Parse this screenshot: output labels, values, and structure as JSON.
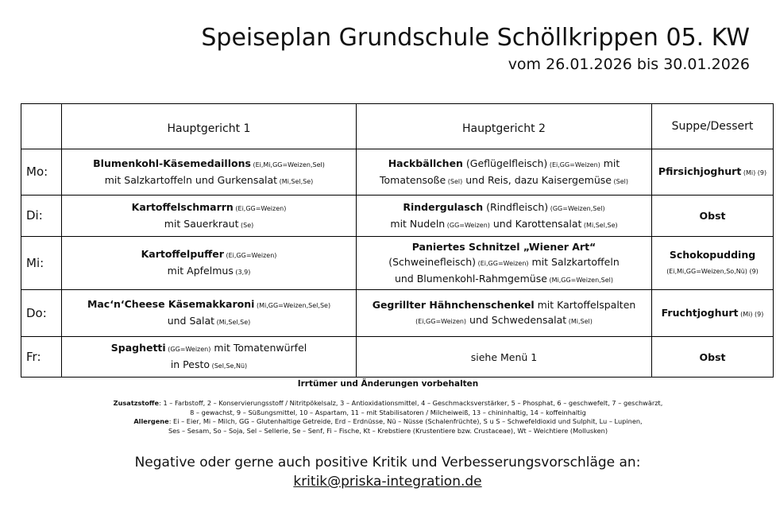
{
  "title": "Speiseplan Grundschule Schöllkrippen 05. KW",
  "subtitle": "vom 26.01.2026 bis 30.01.2026",
  "headers": [
    "",
    "Hauptgericht 1",
    "Hauptgericht 2",
    "Suppe/Dessert"
  ],
  "rows": [
    {
      "day": "Mo:",
      "cells": [
        [
          [
            {
              "t": "Blumenkohl-Käsemedaillons",
              "b": 1
            },
            {
              "t": " (Ei,Mi,GG=Weizen,Sel)",
              "s": 1
            }
          ],
          [
            {
              "t": "mit Salzkartoffeln und Gurkensalat"
            },
            {
              "t": " (Mi,Sel,Se)",
              "s": 1
            }
          ]
        ],
        [
          [
            {
              "t": "Hackbällchen",
              "b": 1
            },
            {
              "t": " (Geflügelfleisch)"
            },
            {
              "t": " (Ei,GG=Weizen)",
              "s": 1
            },
            {
              "t": " mit"
            }
          ],
          [
            {
              "t": "Tomatensoße"
            },
            {
              "t": " (Sel)",
              "s": 1
            },
            {
              "t": " und Reis, dazu Kaisergemüse"
            },
            {
              "t": " (Sel)",
              "s": 1
            }
          ]
        ],
        [
          [
            {
              "t": "Pfirsichjoghurt",
              "b": 1
            },
            {
              "t": " (Mi) (9)",
              "s": 1
            }
          ]
        ]
      ]
    },
    {
      "day": "Di:",
      "cells": [
        [
          [
            {
              "t": "Kartoffelschmarrn",
              "b": 1
            },
            {
              "t": " (Ei,GG=Weizen)",
              "s": 1
            }
          ],
          [
            {
              "t": "mit Sauerkraut"
            },
            {
              "t": " (Se)",
              "s": 1
            }
          ]
        ],
        [
          [
            {
              "t": "Rindergulasch",
              "b": 1
            },
            {
              "t": " (Rindfleisch)"
            },
            {
              "t": " (GG=Weizen,Sel)",
              "s": 1
            }
          ],
          [
            {
              "t": "mit Nudeln"
            },
            {
              "t": " (GG=Weizen)",
              "s": 1
            },
            {
              "t": " und Karottensalat"
            },
            {
              "t": " (Mi,Sel,Se)",
              "s": 1
            }
          ]
        ],
        [
          [
            {
              "t": "Obst",
              "b": 1
            }
          ]
        ]
      ]
    },
    {
      "day": "Mi:",
      "cells": [
        [
          [
            {
              "t": "Kartoffelpuffer",
              "b": 1
            },
            {
              "t": " (Ei,GG=Weizen)",
              "s": 1
            }
          ],
          [
            {
              "t": "mit Apfelmus"
            },
            {
              "t": " (3,9)",
              "s": 1
            }
          ]
        ],
        [
          [
            {
              "t": "Paniertes Schnitzel „Wiener Art“",
              "b": 1
            }
          ],
          [
            {
              "t": "(Schweinefleisch)"
            },
            {
              "t": " (Ei,GG=Weizen)",
              "s": 1
            },
            {
              "t": " mit Salzkartoffeln"
            }
          ],
          [
            {
              "t": "und Blumenkohl-Rahmgemüse"
            },
            {
              "t": " (Mi,GG=Weizen,Sel)",
              "s": 1
            }
          ]
        ],
        [
          [
            {
              "t": "Schokopudding",
              "b": 1
            }
          ],
          [
            {
              "t": "(Ei,Mi,GG=Weizen,So,Nü) (9)",
              "s": 1
            }
          ]
        ]
      ]
    },
    {
      "day": "Do:",
      "cells": [
        [
          [
            {
              "t": "Mac‘n‘Cheese Käsemakkaroni",
              "b": 1
            },
            {
              "t": " (Mi,GG=Weizen,Sel,Se)",
              "s": 1
            }
          ],
          [
            {
              "t": "und Salat"
            },
            {
              "t": " (Mi,Sel,Se)",
              "s": 1
            }
          ]
        ],
        [
          [
            {
              "t": "Gegrillter Hähnchenschenkel",
              "b": 1
            },
            {
              "t": " mit Kartoffelspalten"
            }
          ],
          [
            {
              "t": "(Ei,GG=Weizen)",
              "s": 1
            },
            {
              "t": " und Schwedensalat"
            },
            {
              "t": " (Mi,Sel)",
              "s": 1
            }
          ]
        ],
        [
          [
            {
              "t": "Fruchtjoghurt",
              "b": 1
            },
            {
              "t": " (Mi) (9)",
              "s": 1
            }
          ]
        ]
      ]
    },
    {
      "day": "Fr:",
      "cells": [
        [
          [
            {
              "t": "Spaghetti",
              "b": 1
            },
            {
              "t": " (GG=Weizen)",
              "s": 1
            },
            {
              "t": " mit Tomatenwürfel"
            }
          ],
          [
            {
              "t": "in Pesto"
            },
            {
              "t": " (Sel,Se,Nü)",
              "s": 1
            }
          ]
        ],
        [
          [
            {
              "t": "siehe Menü 1"
            }
          ]
        ],
        [
          [
            {
              "t": "Obst",
              "b": 1
            }
          ]
        ]
      ]
    }
  ],
  "notice": "Irrtümer und Änderungen vorbehalten",
  "additives_label": "Zusatzstoffe",
  "additives": ": 1 – Farbstoff, 2 – Konservierungsstoff / Nitritpökelsalz, 3 – Antioxidationsmittel, 4 – Geschmacksverstärker, 5 – Phosphat, 6 – geschwefelt, 7 – geschwärzt,",
  "additives2": "8 – gewachst, 9 – Süßungsmittel, 10 – Aspartam, 11 – mit Stabilisatoren / Milcheiweiß, 13 – chininhaltig, 14 – koffeinhaltig",
  "allergens_label": "Allergene",
  "allergens": ": Ei – Eier, Mi – Milch, GG – Glutenhaltige Getreide, Erd – Erdnüsse, Nü – Nüsse (Schalenfrüchte), S u S – Schwefeldioxid und Sulphit, Lu – Lupinen,",
  "allergens2": "Ses – Sesam, So – Soja, Sel – Sellerie, Se – Senf, Fi – Fische, Kt – Krebstiere (Krustentiere bzw. Crustaceae), Wt – Weichtiere (Mollusken)",
  "feedback": "Negative oder gerne auch positive Kritik und Verbesserungsvorschläge an:",
  "email": "kritik@priska-integration.de"
}
